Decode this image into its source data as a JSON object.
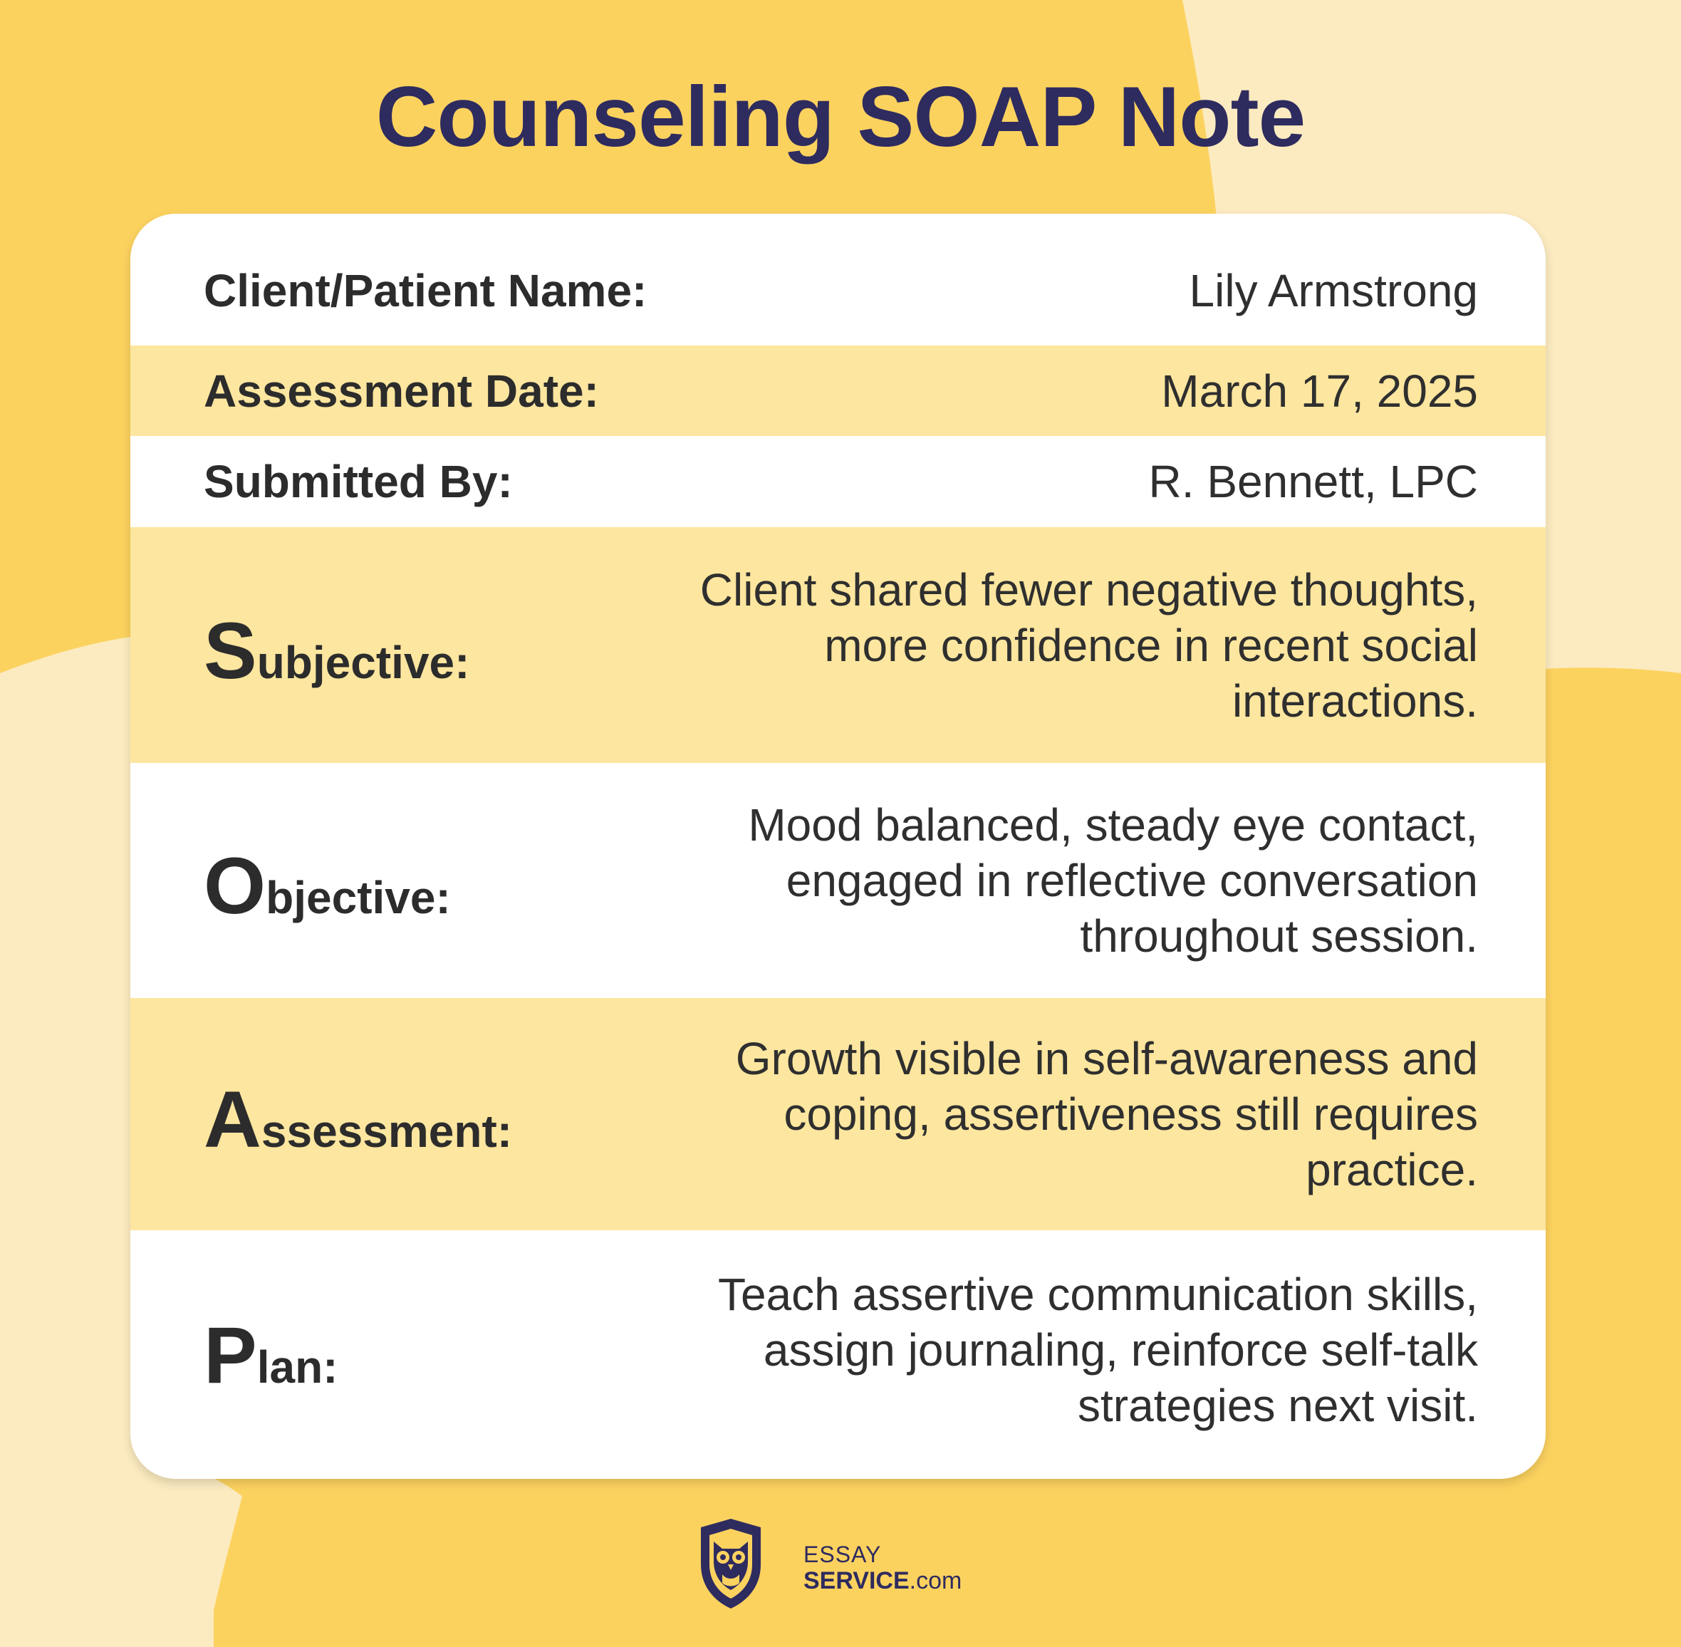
{
  "title": "Counseling SOAP Note",
  "colors": {
    "background": "#FCD25F",
    "background_light": "#FCEBC0",
    "title": "#2E2B5F",
    "card": "#FFFFFF",
    "row_shade": "#FDE69F",
    "text": "#2C2C2C"
  },
  "header_rows": [
    {
      "label": "Client/Patient Name:",
      "value": "Lily Armstrong"
    },
    {
      "label": "Assessment Date:",
      "value": "March 17, 2025"
    },
    {
      "label": "Submitted By:",
      "value": "R. Bennett, LPC"
    }
  ],
  "soap": [
    {
      "initial": "S",
      "rest": "ubjective:",
      "lines": [
        "Client shared fewer negative thoughts,",
        "more confidence in recent social",
        "interactions."
      ]
    },
    {
      "initial": "O",
      "rest": "bjective:",
      "lines": [
        "Mood balanced, steady eye contact,",
        "engaged in reflective conversation",
        "throughout session."
      ]
    },
    {
      "initial": "A",
      "rest": "ssessment:",
      "lines": [
        "Growth visible in self-awareness and",
        "coping, assertiveness still requires",
        "practice."
      ]
    },
    {
      "initial": "P",
      "rest": "lan:",
      "lines": [
        "Teach assertive communication skills,",
        "assign journaling, reinforce self-talk",
        "strategies next visit."
      ]
    }
  ],
  "logo": {
    "line1": "ESSAY",
    "line2_bold": "SERVICE",
    "line2_rest": ".com",
    "icon": "owl-shield-icon"
  }
}
